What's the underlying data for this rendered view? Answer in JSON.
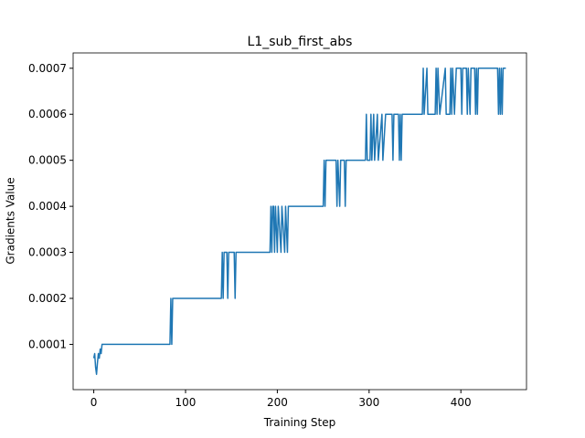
{
  "chart_data": {
    "type": "line",
    "title": "L1_sub_first_abs",
    "xlabel": "Training Step",
    "ylabel": "Gradients Value",
    "x": [
      0,
      1,
      2,
      3,
      4,
      5,
      6,
      7,
      8,
      9,
      83,
      84,
      85,
      86,
      139,
      140,
      141,
      142,
      145,
      146,
      147,
      153,
      154,
      155,
      192,
      193,
      194,
      195,
      196,
      197,
      198,
      200,
      201,
      204,
      205,
      208,
      209,
      211,
      212,
      250,
      251,
      252,
      253,
      264,
      265,
      266,
      268,
      269,
      273,
      274,
      275,
      296,
      297,
      298,
      301,
      302,
      303,
      305,
      306,
      309,
      310,
      314,
      315,
      318,
      325,
      326,
      327,
      332,
      333,
      334,
      335,
      336,
      358,
      359,
      360,
      363,
      364,
      372,
      373,
      374,
      375,
      377,
      383,
      384,
      388,
      389,
      390,
      391,
      393,
      395,
      400,
      401,
      402,
      406,
      407,
      408,
      410,
      411,
      415,
      416,
      417,
      418,
      419,
      440,
      441,
      442,
      443,
      444,
      445,
      446,
      449
    ],
    "series": [
      {
        "color": "#1f77b4",
        "values": [
          7e-05,
          8e-05,
          5e-05,
          3.5e-05,
          6e-05,
          8e-05,
          7e-05,
          9e-05,
          8e-05,
          0.0001,
          0.0001,
          0.0002,
          0.0001,
          0.0002,
          0.0002,
          0.0003,
          0.0002,
          0.0003,
          0.0003,
          0.0002,
          0.0003,
          0.0003,
          0.0002,
          0.0003,
          0.0003,
          0.0004,
          0.0003,
          0.0004,
          0.0004,
          0.0003,
          0.0004,
          0.0003,
          0.0004,
          0.0003,
          0.0004,
          0.0003,
          0.0004,
          0.0003,
          0.0004,
          0.0004,
          0.0005,
          0.0004,
          0.0005,
          0.0005,
          0.0004,
          0.0005,
          0.0004,
          0.0005,
          0.0005,
          0.0004,
          0.0005,
          0.0005,
          0.0006,
          0.0005,
          0.0005,
          0.0006,
          0.0005,
          0.0006,
          0.0005,
          0.0006,
          0.0005,
          0.0006,
          0.0005,
          0.0006,
          0.0006,
          0.0005,
          0.0006,
          0.0006,
          0.0005,
          0.0006,
          0.0005,
          0.0006,
          0.0006,
          0.0007,
          0.0006,
          0.0007,
          0.0006,
          0.0006,
          0.0007,
          0.0006,
          0.0007,
          0.0006,
          0.0007,
          0.0006,
          0.0006,
          0.0007,
          0.0006,
          0.0007,
          0.0006,
          0.0007,
          0.0007,
          0.0006,
          0.0007,
          0.0007,
          0.0006,
          0.0007,
          0.0006,
          0.0007,
          0.0007,
          0.0006,
          0.0007,
          0.0006,
          0.0007,
          0.0007,
          0.0006,
          0.0007,
          0.0006,
          0.0007,
          0.0006,
          0.0007,
          0.0007
        ]
      }
    ],
    "xlim": [
      -22.5,
      471.5
    ],
    "ylim": [
      1.7e-06,
      0.0007333
    ],
    "xticks": [
      0,
      100,
      200,
      300,
      400
    ],
    "yticks": [
      0.0001,
      0.0002,
      0.0003,
      0.0004,
      0.0005,
      0.0006,
      0.0007
    ]
  }
}
